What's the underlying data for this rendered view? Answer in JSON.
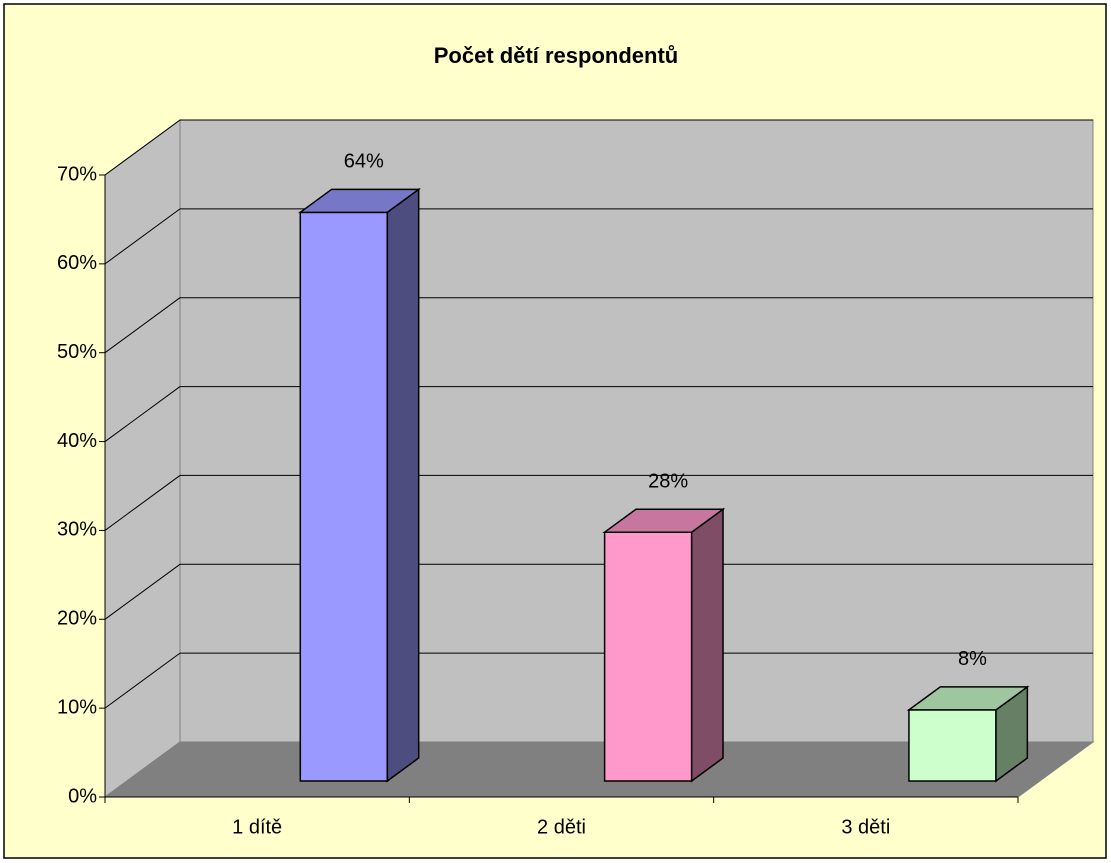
{
  "chart_data": {
    "type": "bar3d",
    "title": "Počet dětí respondentů",
    "categories": [
      "1 dítě",
      "2 děti",
      "3 děti"
    ],
    "values": [
      64,
      28,
      8
    ],
    "value_labels": [
      "64%",
      "28%",
      "8%"
    ],
    "colors": [
      "#9999ff",
      "#ff99cc",
      "#ccffcc"
    ],
    "ylim": [
      0,
      70
    ],
    "yticks": [
      {
        "value": 0,
        "label": "0%"
      },
      {
        "value": 10,
        "label": "10%"
      },
      {
        "value": 20,
        "label": "20%"
      },
      {
        "value": 30,
        "label": "30%"
      },
      {
        "value": 40,
        "label": "40%"
      },
      {
        "value": 50,
        "label": "50%"
      },
      {
        "value": 60,
        "label": "60%"
      },
      {
        "value": 70,
        "label": "70%"
      }
    ],
    "grid": true
  }
}
